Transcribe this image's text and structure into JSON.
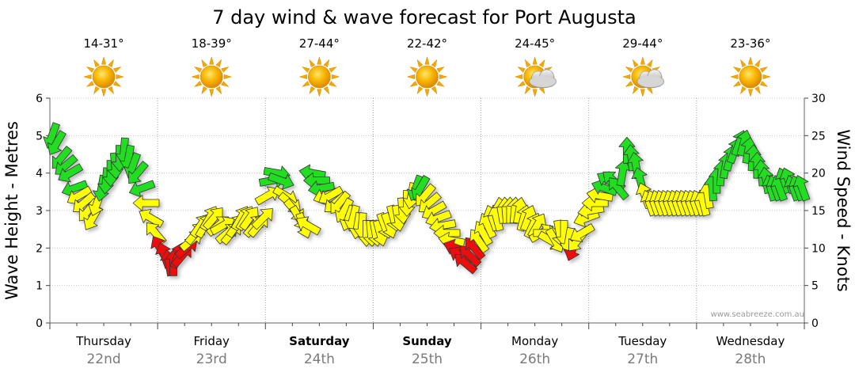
{
  "chart_data": {
    "type": "line",
    "title": "7 day wind & wave forecast for Port Augusta",
    "ylabel_left": "Wave Height - Metres",
    "ylabel_right": "Wind Speed - Knots",
    "ylim_left": [
      0,
      6
    ],
    "ylim_right": [
      0,
      30
    ],
    "yticks_left": [
      "0",
      "1",
      "2",
      "3",
      "4",
      "5",
      "6"
    ],
    "yticks_right": [
      "0",
      "5",
      "10",
      "15",
      "20",
      "25",
      "30"
    ],
    "watermark": "www.seabreeze.com.au",
    "days": [
      {
        "name": "Thursday",
        "date": "22nd",
        "temp": "14-31°",
        "icon": "sun-icon",
        "bold": false
      },
      {
        "name": "Friday",
        "date": "23rd",
        "temp": "18-39°",
        "icon": "sun-icon",
        "bold": false
      },
      {
        "name": "Saturday",
        "date": "24th",
        "temp": "27-44°",
        "icon": "sun-icon",
        "bold": true
      },
      {
        "name": "Sunday",
        "date": "25th",
        "temp": "22-42°",
        "icon": "sun-icon",
        "bold": true
      },
      {
        "name": "Monday",
        "date": "26th",
        "temp": "24-45°",
        "icon": "sun-cloud-icon",
        "bold": false
      },
      {
        "name": "Tuesday",
        "date": "27th",
        "temp": "29-44°",
        "icon": "sun-cloud-icon",
        "bold": false
      },
      {
        "name": "Wednesday",
        "date": "28th",
        "temp": "23-36°",
        "icon": "sun-icon",
        "bold": false
      }
    ],
    "series": [
      {
        "name": "Wind Speed - Knots",
        "axis": "right",
        "units": "knots",
        "points_per_day": 24,
        "values": [
          25,
          24,
          22,
          21,
          20,
          18,
          17,
          16,
          15,
          14,
          16,
          18,
          19,
          20,
          21,
          22,
          23,
          22,
          21,
          20,
          18,
          16,
          14,
          12,
          10,
          9,
          8,
          8,
          9,
          9,
          10,
          11,
          12,
          13,
          13,
          14,
          14,
          13,
          13,
          12,
          12,
          13,
          14,
          14,
          14,
          13,
          13,
          14,
          17,
          19,
          20,
          19,
          17,
          16,
          15,
          14,
          13,
          13,
          20,
          19,
          18,
          17,
          17,
          16,
          16,
          15,
          14,
          14,
          13,
          13,
          12,
          12,
          12,
          12,
          13,
          13,
          14,
          14,
          15,
          16,
          17,
          18,
          18,
          17,
          16,
          15,
          14,
          13,
          12,
          11,
          10,
          9,
          8,
          9,
          10,
          11,
          12,
          13,
          14,
          14,
          15,
          15,
          15,
          15,
          15,
          14,
          14,
          13,
          13,
          12,
          12,
          11,
          11,
          12,
          12,
          11,
          10,
          11,
          12,
          14,
          15,
          16,
          17,
          18,
          19,
          19,
          18,
          20,
          23,
          22,
          21,
          19,
          17,
          16,
          16,
          16,
          16,
          16,
          16,
          16,
          16,
          16,
          16,
          16,
          16,
          16,
          17,
          18,
          19,
          20,
          21,
          22,
          23,
          24,
          24,
          23,
          22,
          21,
          20,
          19,
          18,
          18,
          18,
          19,
          19,
          18,
          18,
          18
        ],
        "directions_deg": [
          200,
          210,
          220,
          230,
          240,
          250,
          240,
          230,
          220,
          210,
          200,
          190,
          185,
          180,
          175,
          180,
          185,
          190,
          200,
          220,
          250,
          270,
          300,
          320,
          330,
          340,
          350,
          0,
          20,
          40,
          50,
          50,
          40,
          35,
          30,
          30,
          40,
          50,
          60,
          50,
          40,
          35,
          30,
          30,
          35,
          40,
          40,
          45,
          60,
          80,
          100,
          110,
          120,
          130,
          140,
          150,
          160,
          300,
          280,
          270,
          260,
          250,
          240,
          230,
          220,
          210,
          200,
          195,
          190,
          185,
          180,
          175,
          170,
          165,
          160,
          160,
          165,
          170,
          175,
          180,
          190,
          200,
          210,
          220,
          230,
          240,
          250,
          260,
          270,
          280,
          290,
          300,
          310,
          315,
          320,
          325,
          330,
          335,
          340,
          345,
          350,
          355,
          0,
          5,
          10,
          15,
          20,
          25,
          30,
          60,
          90,
          120,
          150,
          170,
          180,
          190,
          200,
          220,
          240,
          250,
          260,
          270,
          280,
          290,
          300,
          310,
          320,
          10,
          0,
          355,
          350,
          345,
          340,
          340,
          340,
          340,
          340,
          340,
          340,
          340,
          340,
          340,
          340,
          340,
          340,
          345,
          350,
          355,
          0,
          5,
          10,
          15,
          20,
          20,
          15,
          10,
          5,
          0,
          355,
          350,
          345,
          340,
          340,
          340,
          340,
          340,
          340,
          340
        ]
      }
    ],
    "speed_color_thresholds_knots": {
      "red_max": 10,
      "yellow_max": 17,
      "green_above": 17
    },
    "arrow_colors": {
      "red": "#ee1111",
      "yellow": "#ffff00",
      "green": "#22dd22",
      "outline": "#333333"
    },
    "grid": true,
    "legend": "none"
  }
}
